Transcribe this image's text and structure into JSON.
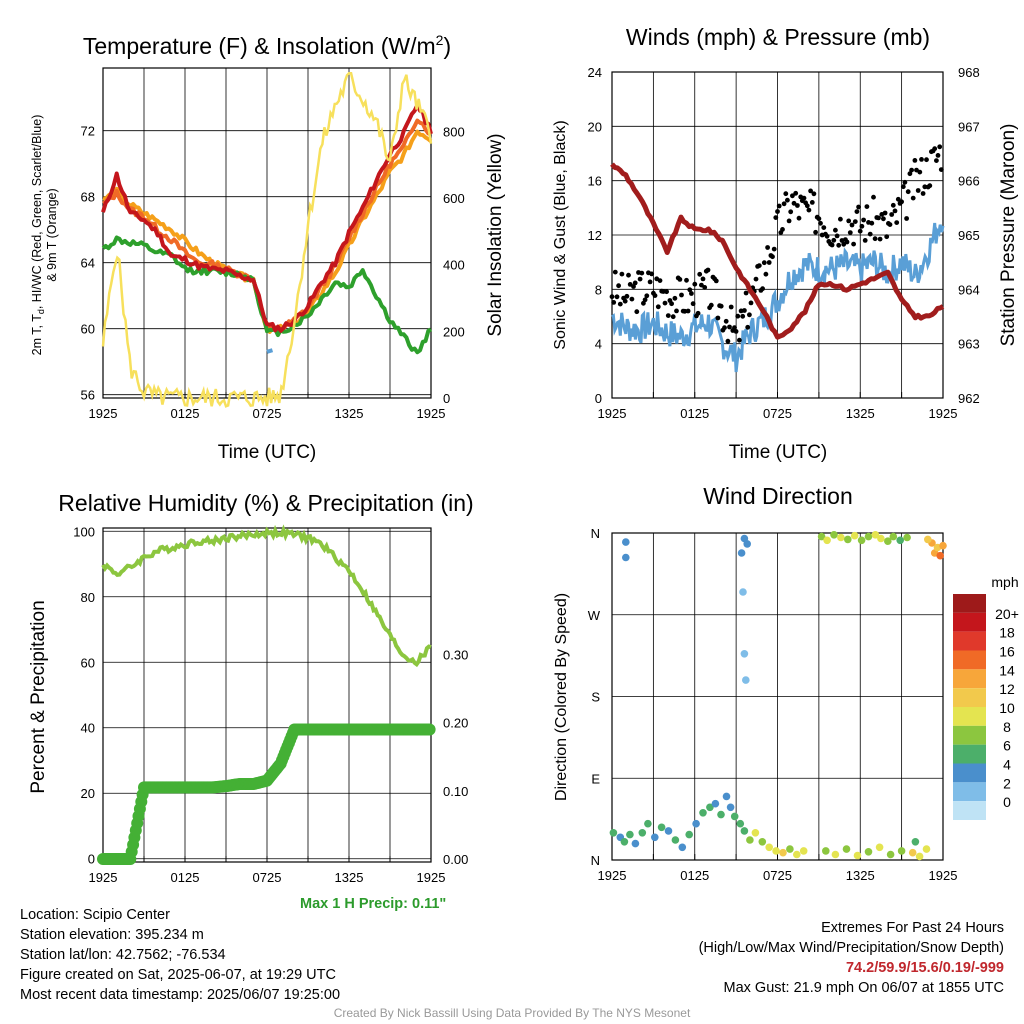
{
  "colors": {
    "red": "#c4161c",
    "green": "#2ea02c",
    "scarlet": "#f06a26",
    "orange": "#f5a01a",
    "yellow": "#f7e05c",
    "blue": "#5a9fd6",
    "maroon": "#a11d1d",
    "steel": "#4682b4",
    "rh": "#8cc63f",
    "precip": "#44b035",
    "note_green": "#2c9b2c",
    "extreme_red": "#c0272d"
  },
  "chart_data": [
    {
      "type": "line",
      "title": "Temperature (F) & Insolation (W/m²)",
      "xlabel": "Time (UTC)",
      "ylabel": "2m T, Td, HI/WC (Red, Green, Scarlet/Blue) & 9m T (Orange)",
      "ylabel_line1": "2m T, T",
      "ylabel_sub": "d",
      "ylabel_line1_rest": ", HI/WC (Red, Green, Scarlet/Blue)",
      "ylabel_line2": "& 9m T (Orange)",
      "y2label": "Solar Insolation (Yellow)",
      "x_ticks": [
        "1925",
        "0125",
        "0725",
        "1325",
        "1925"
      ],
      "ylim": [
        55.8,
        75.8
      ],
      "y_ticks": [
        56,
        60,
        64,
        68,
        72
      ],
      "y2lim": [
        0,
        990
      ],
      "y2_ticks": [
        0,
        200,
        400,
        600,
        800
      ],
      "x": [
        0,
        1,
        2,
        3,
        4,
        5,
        6,
        7,
        8,
        9,
        10,
        11,
        12,
        13,
        14,
        15,
        16,
        17,
        18,
        19,
        20,
        21,
        22,
        23,
        24
      ],
      "series": [
        {
          "name": "2m T (Red)",
          "values": [
            67.0,
            69.3,
            67.0,
            66.6,
            65.8,
            64.4,
            64.2,
            63.8,
            63.6,
            63.5,
            63.2,
            63.0,
            60.2,
            60.0,
            60.5,
            61.4,
            62.8,
            64.0,
            65.8,
            67.3,
            69.0,
            70.6,
            71.8,
            73.6,
            72.0
          ]
        },
        {
          "name": "2m Td (Green)",
          "values": [
            64.8,
            65.4,
            65.2,
            65.0,
            64.6,
            64.4,
            63.6,
            63.5,
            63.5,
            63.4,
            63.3,
            63.0,
            59.8,
            59.8,
            60.2,
            60.8,
            61.8,
            62.8,
            62.5,
            63.6,
            62.0,
            60.5,
            59.5,
            58.5,
            60.0
          ]
        },
        {
          "name": "HI/WC (Scarlet)",
          "values": [
            67.5,
            68.2,
            67.2,
            66.8,
            66.0,
            65.4,
            64.6,
            64.0,
            63.9,
            63.6,
            63.3,
            63.0,
            59.9,
            60.0,
            60.5,
            61.3,
            62.6,
            63.8,
            65.5,
            67.0,
            68.5,
            70.0,
            71.0,
            72.8,
            71.8
          ]
        },
        {
          "name": "9m T (Orange)",
          "values": [
            67.8,
            68.3,
            67.5,
            67.0,
            66.5,
            66.0,
            65.3,
            64.6,
            64.0,
            63.6,
            63.2,
            63.0,
            60.0,
            60.0,
            60.3,
            61.0,
            62.2,
            63.4,
            65.0,
            66.6,
            68.0,
            69.5,
            70.5,
            72.0,
            71.5
          ]
        },
        {
          "name": "Solar Insolation (Yellow)",
          "values": [
            160,
            460,
            90,
            20,
            3,
            0,
            0,
            0,
            0,
            0,
            0,
            0,
            0,
            10,
            230,
            520,
            760,
            880,
            960,
            900,
            830,
            700,
            960,
            880,
            790
          ]
        }
      ],
      "wc_blue": {
        "x": [
          12.0,
          12.4
        ],
        "values": [
          58.6,
          58.7
        ]
      }
    },
    {
      "type": "scatter",
      "title": "Winds (mph) & Pressure (mb)",
      "xlabel": "Time (UTC)",
      "ylabel": "Sonic Wind & Gust (Blue, Black)",
      "y2label": "Station Pressure (Maroon)",
      "x_ticks": [
        "1925",
        "0125",
        "0725",
        "1325",
        "1925"
      ],
      "ylim": [
        0,
        24
      ],
      "y_ticks": [
        0,
        4,
        8,
        12,
        16,
        20,
        24
      ],
      "y2lim": [
        962,
        968
      ],
      "y2_ticks": [
        962,
        963,
        964,
        965,
        966,
        967,
        968
      ],
      "x": [
        0,
        1,
        2,
        3,
        4,
        5,
        6,
        7,
        8,
        9,
        10,
        11,
        12,
        13,
        14,
        15,
        16,
        17,
        18,
        19,
        20,
        21,
        22,
        23,
        24
      ],
      "series": [
        {
          "name": "Sonic Wind (Blue)",
          "values": [
            6.0,
            5.2,
            5.0,
            5.5,
            4.8,
            4.5,
            5.2,
            5.6,
            4.0,
            3.0,
            4.8,
            5.8,
            7.2,
            9.0,
            9.8,
            9.5,
            9.5,
            9.8,
            9.5,
            10.0,
            9.2,
            10.0,
            9.0,
            11.0,
            13.5
          ]
        },
        {
          "name": "Gust (Black)",
          "values": [
            8.0,
            7.5,
            8.0,
            8.2,
            7.6,
            7.4,
            7.5,
            8.0,
            6.5,
            4.5,
            7.0,
            9.5,
            12.5,
            14.5,
            13.8,
            13.6,
            12.5,
            13.0,
            12.8,
            13.2,
            12.5,
            14.0,
            16.0,
            17.0,
            18.5
          ]
        },
        {
          "name": "Station Pressure (Maroon)",
          "values": [
            966.3,
            966.1,
            965.7,
            965.2,
            964.7,
            965.3,
            965.1,
            965.1,
            964.9,
            964.4,
            964.0,
            963.6,
            963.1,
            963.3,
            963.6,
            964.1,
            964.1,
            964.0,
            964.1,
            964.2,
            964.3,
            963.8,
            963.5,
            963.5,
            963.7
          ]
        }
      ]
    },
    {
      "type": "line",
      "title": "Relative Humidity (%) & Precipitation (in)",
      "ylabel": "Percent & Precipitation",
      "x_ticks": [
        "1925",
        "0125",
        "0725",
        "1325",
        "1925"
      ],
      "ylim": [
        -1,
        101
      ],
      "y_ticks": [
        0,
        20,
        40,
        60,
        80,
        100
      ],
      "y2lim": [
        0,
        0.49
      ],
      "y2_ticks": [
        "0.00",
        "0.10",
        "0.20",
        "0.30"
      ],
      "y2_tick_values": [
        0,
        0.1,
        0.2,
        0.3
      ],
      "x": [
        0,
        1,
        2,
        3,
        4,
        5,
        6,
        7,
        8,
        9,
        10,
        11,
        12,
        13,
        14,
        15,
        16,
        17,
        18,
        19,
        20,
        21,
        22,
        23,
        24
      ],
      "series": [
        {
          "name": "Relative Humidity",
          "values": [
            90,
            87,
            89,
            92,
            94,
            95,
            96,
            97,
            97,
            98,
            98.5,
            99,
            99.5,
            99.5,
            99,
            98,
            96,
            92,
            88,
            82,
            75,
            68,
            62,
            60,
            65
          ]
        },
        {
          "name": "Precipitation",
          "values": [
            0.0,
            0.0,
            0.0,
            0.105,
            0.105,
            0.105,
            0.105,
            0.105,
            0.105,
            0.107,
            0.11,
            0.11,
            0.115,
            0.14,
            0.19,
            0.19,
            0.19,
            0.19,
            0.19,
            0.19,
            0.19,
            0.19,
            0.19,
            0.19,
            0.19
          ]
        }
      ],
      "max_precip_note": "Max 1 H Precip: 0.11\""
    },
    {
      "type": "scatter",
      "title": "Wind Direction",
      "ylabel": "Direction (Colored By Speed)",
      "x_ticks": [
        "1925",
        "0125",
        "0725",
        "1325",
        "1925"
      ],
      "y_ticks": [
        "N",
        "E",
        "S",
        "W",
        "N"
      ],
      "y_tick_values": [
        0,
        90,
        180,
        270,
        360
      ],
      "ylim": [
        0,
        360
      ],
      "legend_title": "mph",
      "legend_labels": [
        "20+",
        "18",
        "16",
        "14",
        "12",
        "10",
        "8",
        "6",
        "4",
        "2",
        "0"
      ],
      "legend_colors": [
        "#9e1a1a",
        "#c4161c",
        "#e0392b",
        "#f06a26",
        "#f7a63a",
        "#f2c94c",
        "#e4e450",
        "#8cc63f",
        "#4caf6a",
        "#4a8fcc",
        "#7fbde8",
        "#bfe3f5"
      ],
      "points": [
        {
          "x": 1.0,
          "dir": 350,
          "speed": 4
        },
        {
          "x": 1.0,
          "dir": 333,
          "speed": 4
        },
        {
          "x": 0.1,
          "dir": 30,
          "speed": 5
        },
        {
          "x": 0.6,
          "dir": 25,
          "speed": 4
        },
        {
          "x": 0.9,
          "dir": 20,
          "speed": 5
        },
        {
          "x": 1.3,
          "dir": 28,
          "speed": 6
        },
        {
          "x": 1.7,
          "dir": 18,
          "speed": 3
        },
        {
          "x": 2.2,
          "dir": 30,
          "speed": 5
        },
        {
          "x": 2.6,
          "dir": 40,
          "speed": 6
        },
        {
          "x": 3.1,
          "dir": 25,
          "speed": 4
        },
        {
          "x": 3.6,
          "dir": 36,
          "speed": 6
        },
        {
          "x": 4.1,
          "dir": 32,
          "speed": 3
        },
        {
          "x": 4.6,
          "dir": 22,
          "speed": 5
        },
        {
          "x": 5.1,
          "dir": 14,
          "speed": 4
        },
        {
          "x": 5.6,
          "dir": 28,
          "speed": 6
        },
        {
          "x": 6.1,
          "dir": 40,
          "speed": 4
        },
        {
          "x": 6.6,
          "dir": 52,
          "speed": 5
        },
        {
          "x": 7.1,
          "dir": 58,
          "speed": 6
        },
        {
          "x": 7.5,
          "dir": 62,
          "speed": 4
        },
        {
          "x": 7.9,
          "dir": 50,
          "speed": 5
        },
        {
          "x": 8.3,
          "dir": 70,
          "speed": 4
        },
        {
          "x": 8.6,
          "dir": 58,
          "speed": 3
        },
        {
          "x": 8.9,
          "dir": 48,
          "speed": 6
        },
        {
          "x": 9.3,
          "dir": 40,
          "speed": 5
        },
        {
          "x": 9.6,
          "dir": 32,
          "speed": 6
        },
        {
          "x": 10.0,
          "dir": 22,
          "speed": 8
        },
        {
          "x": 10.4,
          "dir": 30,
          "speed": 9
        },
        {
          "x": 10.9,
          "dir": 20,
          "speed": 7
        },
        {
          "x": 11.4,
          "dir": 14,
          "speed": 10
        },
        {
          "x": 11.9,
          "dir": 10,
          "speed": 9
        },
        {
          "x": 12.4,
          "dir": 8,
          "speed": 11
        },
        {
          "x": 12.9,
          "dir": 12,
          "speed": 8
        },
        {
          "x": 13.4,
          "dir": 6,
          "speed": 10
        },
        {
          "x": 13.9,
          "dir": 10,
          "speed": 9
        },
        {
          "x": 9.6,
          "dir": 354,
          "speed": 3
        },
        {
          "x": 9.8,
          "dir": 348,
          "speed": 4
        },
        {
          "x": 9.4,
          "dir": 338,
          "speed": 4
        },
        {
          "x": 9.5,
          "dir": 295,
          "speed": 2
        },
        {
          "x": 9.6,
          "dir": 227,
          "speed": 2
        },
        {
          "x": 9.7,
          "dir": 198,
          "speed": 1
        },
        {
          "x": 15.2,
          "dir": 356,
          "speed": 8
        },
        {
          "x": 15.6,
          "dir": 352,
          "speed": 9
        },
        {
          "x": 16.1,
          "dir": 358,
          "speed": 7
        },
        {
          "x": 16.6,
          "dir": 355,
          "speed": 10
        },
        {
          "x": 17.1,
          "dir": 353,
          "speed": 8
        },
        {
          "x": 17.6,
          "dir": 357,
          "speed": 9
        },
        {
          "x": 18.1,
          "dir": 352,
          "speed": 7
        },
        {
          "x": 18.6,
          "dir": 356,
          "speed": 8
        },
        {
          "x": 19.1,
          "dir": 358,
          "speed": 10
        },
        {
          "x": 19.5,
          "dir": 354,
          "speed": 9
        },
        {
          "x": 20.0,
          "dir": 351,
          "speed": 7
        },
        {
          "x": 20.4,
          "dir": 356,
          "speed": 8
        },
        {
          "x": 20.9,
          "dir": 352,
          "speed": 6
        },
        {
          "x": 21.4,
          "dir": 355,
          "speed": 7
        },
        {
          "x": 15.5,
          "dir": 10,
          "speed": 8
        },
        {
          "x": 16.2,
          "dir": 6,
          "speed": 9
        },
        {
          "x": 17.0,
          "dir": 12,
          "speed": 7
        },
        {
          "x": 17.8,
          "dir": 5,
          "speed": 10
        },
        {
          "x": 18.6,
          "dir": 9,
          "speed": 8
        },
        {
          "x": 19.4,
          "dir": 14,
          "speed": 9
        },
        {
          "x": 20.2,
          "dir": 6,
          "speed": 7
        },
        {
          "x": 21.0,
          "dir": 10,
          "speed": 8
        },
        {
          "x": 21.8,
          "dir": 8,
          "speed": 11
        },
        {
          "x": 22.3,
          "dir": 4,
          "speed": 10
        },
        {
          "x": 22.8,
          "dir": 12,
          "speed": 9
        },
        {
          "x": 22.0,
          "dir": 20,
          "speed": 6
        },
        {
          "x": 23.2,
          "dir": 349,
          "speed": 13
        },
        {
          "x": 23.4,
          "dir": 338,
          "speed": 14
        },
        {
          "x": 23.6,
          "dir": 344,
          "speed": 12
        },
        {
          "x": 23.8,
          "dir": 335,
          "speed": 15
        },
        {
          "x": 24.0,
          "dir": 346,
          "speed": 13
        },
        {
          "x": 22.9,
          "dir": 353,
          "speed": 11
        }
      ]
    }
  ],
  "info": {
    "location": "Location: Scipio Center",
    "elevation": "Station elevation: 395.234 m",
    "latlon": "Station lat/lon: 42.7562; -76.534",
    "created": "Figure created on Sat, 2025-06-07, at 19:29 UTC",
    "recent": "Most recent data timestamp: 2025/06/07 19:25:00",
    "extremes_title": "Extremes For Past 24 Hours",
    "extremes_subtitle": "(High/Low/Max Wind/Precipitation/Snow Depth)",
    "extremes_values": "74.2/59.9/15.6/0.19/-999",
    "max_gust": "Max Gust: 21.9 mph On 06/07 at 1855 UTC",
    "credit": "Created By Nick Bassill Using Data Provided By The NYS Mesonet"
  }
}
